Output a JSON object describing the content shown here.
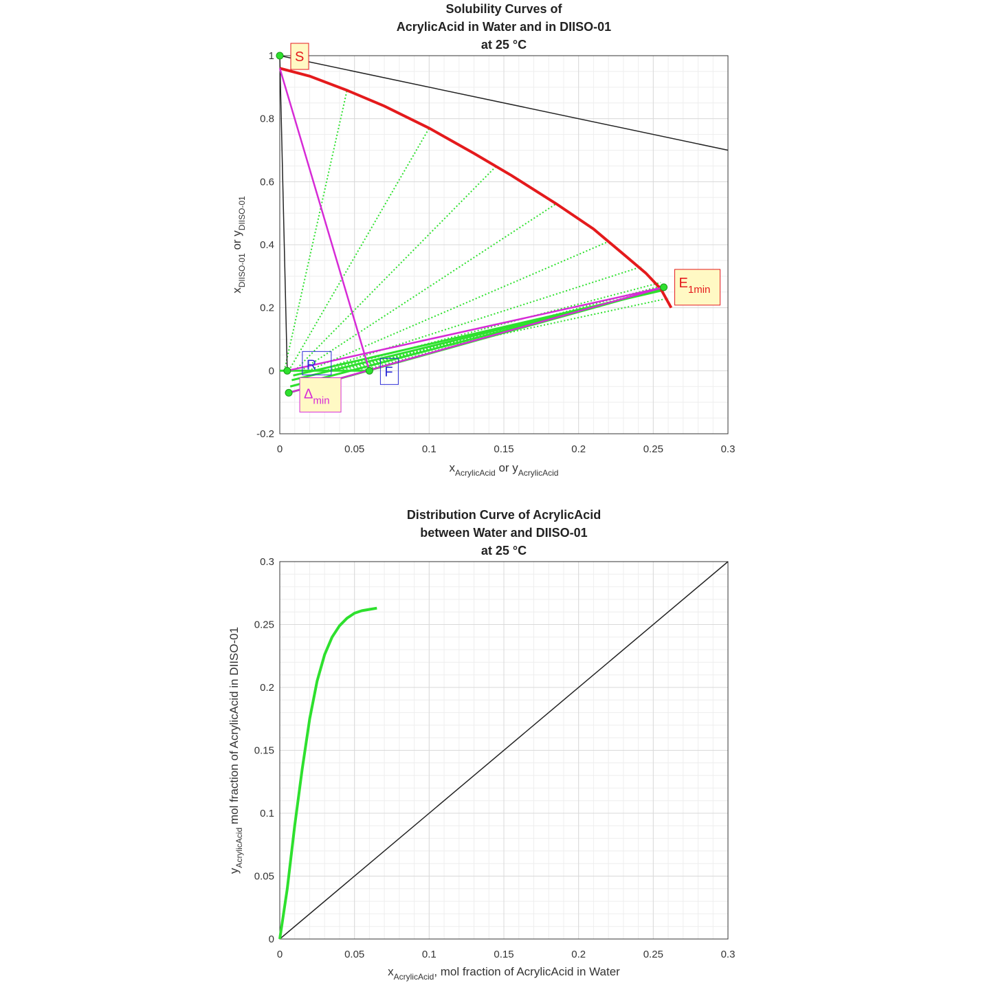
{
  "colors": {
    "raffinate_curve": "#e41a1c",
    "tie_lines": "#2ee02e",
    "construction": "#d62ad6",
    "diagonal": "#222222",
    "label_red": "#e41a1c",
    "label_blue": "#2a2ad6",
    "label_magenta": "#d62ad6",
    "label_bg": "#fff9c4",
    "grid": "#d9d9d9"
  },
  "chart_data": [
    {
      "type": "line",
      "title_lines": [
        "Solubility Curves of",
        "AcrylicAcid in Water and in DIISO-01",
        "at 25 °C"
      ],
      "xlabel": {
        "main": "x",
        "sub": "AcrylicAcid",
        "mid": " or y",
        "sub2": "AcrylicAcid"
      },
      "ylabel": {
        "main": "x",
        "sub": "DIISO-01",
        "mid": " or y",
        "sub2": "DIISO-01"
      },
      "xlim": [
        0,
        0.3
      ],
      "ylim": [
        -0.2,
        1
      ],
      "xticks": [
        0,
        0.05,
        0.1,
        0.15,
        0.2,
        0.25,
        0.3
      ],
      "xtick_labels": [
        "0",
        "0.05",
        "0.1",
        "0.15",
        "0.2",
        "0.25",
        "0.3"
      ],
      "yticks": [
        -0.2,
        0,
        0.2,
        0.4,
        0.6,
        0.8,
        1
      ],
      "ytick_labels": [
        "-0.2",
        "0",
        "0.2",
        "0.4",
        "0.6",
        "0.8",
        "1"
      ],
      "grid": true,
      "solubility_curve_extract": {
        "x": [
          0,
          0.02,
          0.045,
          0.07,
          0.1,
          0.13,
          0.155,
          0.185,
          0.21,
          0.23,
          0.245,
          0.255,
          0.262
        ],
        "y": [
          0.96,
          0.935,
          0.89,
          0.84,
          0.77,
          0.69,
          0.62,
          0.53,
          0.45,
          0.37,
          0.31,
          0.26,
          0.2
        ]
      },
      "solubility_curve_raffinate": {
        "x": [
          0,
          0.005,
          0.015,
          0.03,
          0.045,
          0.06
        ],
        "y": [
          0,
          0,
          0,
          0,
          0,
          0
        ]
      },
      "tie_lines": [
        [
          [
            0.003,
            0
          ],
          [
            0.045,
            0.89
          ]
        ],
        [
          [
            0.006,
            0
          ],
          [
            0.1,
            0.77
          ]
        ],
        [
          [
            0.01,
            0
          ],
          [
            0.145,
            0.65
          ]
        ],
        [
          [
            0.014,
            0
          ],
          [
            0.185,
            0.53
          ]
        ],
        [
          [
            0.019,
            0
          ],
          [
            0.22,
            0.41
          ]
        ],
        [
          [
            0.025,
            0
          ],
          [
            0.242,
            0.33
          ]
        ],
        [
          [
            0.03,
            0
          ],
          [
            0.255,
            0.28
          ]
        ],
        [
          [
            0.035,
            0
          ],
          [
            0.26,
            0.23
          ]
        ],
        [
          [
            0.04,
            0
          ],
          [
            0.258,
            0.26
          ]
        ],
        [
          [
            0.045,
            0
          ],
          [
            0.256,
            0.27
          ]
        ],
        [
          [
            0.05,
            0
          ],
          [
            0.257,
            0.265
          ]
        ],
        [
          [
            0.055,
            0
          ],
          [
            0.258,
            0.262
          ]
        ]
      ],
      "lower_tie_band": [
        [
          [
            0.006,
            -0.07
          ],
          [
            0.257,
            0.262
          ]
        ],
        [
          [
            0.007,
            -0.05
          ],
          [
            0.257,
            0.26
          ]
        ],
        [
          [
            0.008,
            -0.03
          ],
          [
            0.257,
            0.258
          ]
        ],
        [
          [
            0.009,
            -0.015
          ],
          [
            0.257,
            0.256
          ]
        ]
      ],
      "black_lines": [
        [
          [
            0,
            1
          ],
          [
            0.3,
            0.7
          ]
        ],
        [
          [
            0,
            1
          ],
          [
            0.005,
            0
          ]
        ]
      ],
      "construction_lines": [
        [
          [
            0,
            0.96
          ],
          [
            0.06,
            0
          ]
        ],
        [
          [
            0.005,
            0
          ],
          [
            0.257,
            0.265
          ]
        ],
        [
          [
            0.006,
            -0.07
          ],
          [
            0.257,
            0.265
          ]
        ]
      ],
      "points": [
        {
          "name": "S",
          "x": 0,
          "y": 1
        },
        {
          "name": "R",
          "x": 0.005,
          "y": 0
        },
        {
          "name": "F",
          "x": 0.06,
          "y": 0
        },
        {
          "name": "E1min",
          "x": 0.257,
          "y": 0.265
        },
        {
          "name": "Dmin",
          "x": 0.006,
          "y": -0.07
        }
      ],
      "annotations": [
        {
          "id": "S",
          "text": "S",
          "sub": "",
          "color": "label_red"
        },
        {
          "id": "E1min",
          "text": "E",
          "sub": "1min",
          "color": "label_red"
        },
        {
          "id": "R",
          "text": "R",
          "sub": "",
          "color": "label_blue"
        },
        {
          "id": "F",
          "text": "F",
          "sub": "",
          "color": "label_blue"
        },
        {
          "id": "Dmin",
          "text": "Δ",
          "sub": "min",
          "color": "label_magenta"
        }
      ]
    },
    {
      "type": "line",
      "title_lines": [
        "Distribution Curve of AcrylicAcid",
        "between Water and DIISO-01",
        "at 25 °C"
      ],
      "xlabel": {
        "main": "x",
        "sub": "AcrylicAcid",
        "mid": ", mol fraction of AcrylicAcid in Water",
        "sub2": ""
      },
      "ylabel": {
        "main": "y",
        "sub": "AcrylicAcid",
        "mid": " mol fraction of AcrylicAcid in DIISO-01",
        "sub2": ""
      },
      "xlim": [
        0,
        0.3
      ],
      "ylim": [
        0,
        0.3
      ],
      "xticks": [
        0,
        0.05,
        0.1,
        0.15,
        0.2,
        0.25,
        0.3
      ],
      "xtick_labels": [
        "0",
        "0.05",
        "0.1",
        "0.15",
        "0.2",
        "0.25",
        "0.3"
      ],
      "yticks": [
        0,
        0.05,
        0.1,
        0.15,
        0.2,
        0.25,
        0.3
      ],
      "ytick_labels": [
        "0",
        "0.05",
        "0.1",
        "0.15",
        "0.2",
        "0.25",
        "0.3"
      ],
      "grid": true,
      "series": [
        {
          "x": [
            0,
            0.005,
            0.01,
            0.015,
            0.02,
            0.025,
            0.03,
            0.035,
            0.04,
            0.045,
            0.05,
            0.055,
            0.06,
            0.065
          ],
          "y": [
            0,
            0.04,
            0.09,
            0.135,
            0.175,
            0.205,
            0.226,
            0.24,
            0.249,
            0.255,
            0.259,
            0.261,
            0.262,
            0.263
          ]
        },
        {
          "x": [
            0,
            0.3
          ],
          "y": [
            0,
            0.3
          ]
        }
      ]
    }
  ]
}
